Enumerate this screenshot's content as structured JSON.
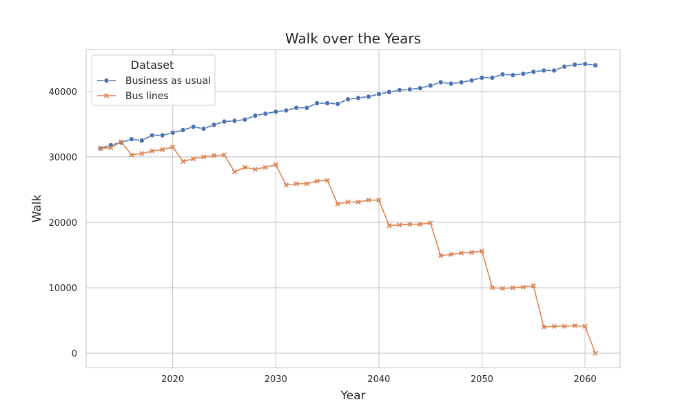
{
  "chart_data": {
    "type": "line",
    "title": "Walk over the Years",
    "xlabel": "Year",
    "ylabel": "Walk",
    "xlim": [
      2011.6,
      2063.4
    ],
    "ylim": [
      -2200,
      46400
    ],
    "xticks": [
      2020,
      2030,
      2040,
      2050,
      2060
    ],
    "yticks": [
      0,
      10000,
      20000,
      30000,
      40000
    ],
    "grid": true,
    "legend": {
      "title": "Dataset",
      "placement": "top-left"
    },
    "x": [
      2013,
      2014,
      2015,
      2016,
      2017,
      2018,
      2019,
      2020,
      2021,
      2022,
      2023,
      2024,
      2025,
      2026,
      2027,
      2028,
      2029,
      2030,
      2031,
      2032,
      2033,
      2034,
      2035,
      2036,
      2037,
      2038,
      2039,
      2040,
      2041,
      2042,
      2043,
      2044,
      2045,
      2046,
      2047,
      2048,
      2049,
      2050,
      2051,
      2052,
      2053,
      2054,
      2055,
      2056,
      2057,
      2058,
      2059,
      2060,
      2061
    ],
    "series": [
      {
        "name": "Business as usual",
        "color": "#4c72b0",
        "marker": "circle",
        "values": [
          31300,
          31800,
          32200,
          32700,
          32500,
          33300,
          33300,
          33700,
          34100,
          34600,
          34300,
          34900,
          35400,
          35500,
          35700,
          36300,
          36600,
          36900,
          37100,
          37500,
          37500,
          38200,
          38200,
          38100,
          38800,
          39000,
          39200,
          39600,
          39900,
          40200,
          40300,
          40500,
          40900,
          41400,
          41200,
          41400,
          41700,
          42100,
          42100,
          42600,
          42500,
          42700,
          43000,
          43200,
          43200,
          43800,
          44100,
          44200,
          44000
        ]
      },
      {
        "name": "Bus lines",
        "color": "#dd8452",
        "marker": "x",
        "values": [
          31300,
          31400,
          32300,
          30300,
          30500,
          30900,
          31100,
          31500,
          29300,
          29700,
          30000,
          30200,
          30300,
          27700,
          28400,
          28100,
          28400,
          28800,
          25700,
          25900,
          25900,
          26300,
          26400,
          22800,
          23100,
          23100,
          23400,
          23400,
          19500,
          19600,
          19700,
          19700,
          19900,
          14900,
          15100,
          15300,
          15400,
          15600,
          10000,
          9900,
          10000,
          10100,
          10300,
          4000,
          4100,
          4100,
          4200,
          4100,
          0
        ]
      }
    ]
  }
}
